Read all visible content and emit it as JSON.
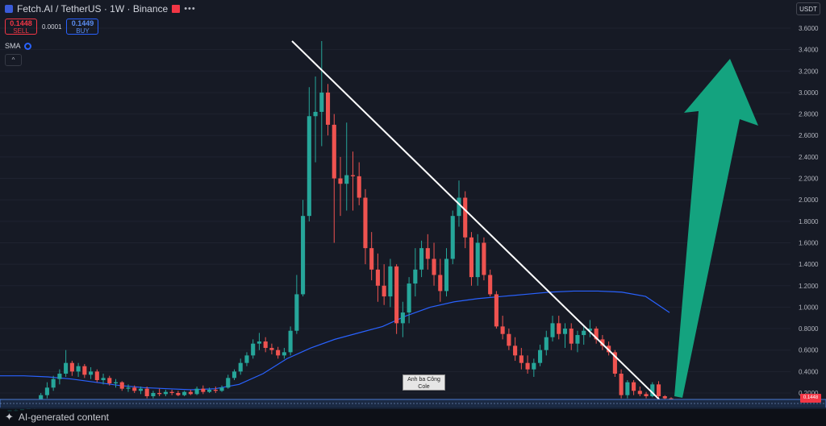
{
  "header": {
    "symbol": "Fetch.AI / TetherUS · 1W · Binance"
  },
  "trade": {
    "sell_price": "0.1448",
    "sell_label": "SELL",
    "spread": "0.0001",
    "buy_price": "0.1449",
    "buy_label": "BUY"
  },
  "indicator": {
    "label": "SMA"
  },
  "collapse_label": "^",
  "currency": "USDT",
  "last_price_tag": "0.1448",
  "annotation": {
    "line1": "Anh ba Công",
    "line2": "Cole"
  },
  "footer": {
    "label": "AI-generated content"
  },
  "colors": {
    "up": "#26a69a",
    "down": "#ef5350",
    "sma": "#2962ff",
    "trendline": "#ffffff",
    "arrow": "#14a37f"
  },
  "chart_data": {
    "type": "candlestick",
    "y_ticks": [
      "3.6000",
      "3.4000",
      "3.2000",
      "3.0000",
      "2.8000",
      "2.6000",
      "2.4000",
      "2.2000",
      "2.0000",
      "1.8000",
      "1.6000",
      "1.4000",
      "1.2000",
      "1.0000",
      "0.8000",
      "0.6000",
      "0.4000",
      "0.2000"
    ],
    "ylim": [
      0,
      3.7
    ],
    "candles": [
      [
        0.03,
        0.04,
        0.03,
        0.04
      ],
      [
        0.04,
        0.05,
        0.03,
        0.04
      ],
      [
        0.04,
        0.05,
        0.04,
        0.05
      ],
      [
        0.05,
        0.07,
        0.05,
        0.06
      ],
      [
        0.06,
        0.08,
        0.05,
        0.07
      ],
      [
        0.07,
        0.2,
        0.07,
        0.18
      ],
      [
        0.18,
        0.3,
        0.15,
        0.25
      ],
      [
        0.25,
        0.36,
        0.22,
        0.33
      ],
      [
        0.33,
        0.42,
        0.28,
        0.38
      ],
      [
        0.38,
        0.6,
        0.35,
        0.48
      ],
      [
        0.48,
        0.5,
        0.36,
        0.4
      ],
      [
        0.4,
        0.48,
        0.35,
        0.45
      ],
      [
        0.45,
        0.47,
        0.34,
        0.37
      ],
      [
        0.37,
        0.44,
        0.33,
        0.4
      ],
      [
        0.4,
        0.42,
        0.3,
        0.32
      ],
      [
        0.32,
        0.38,
        0.28,
        0.34
      ],
      [
        0.34,
        0.36,
        0.27,
        0.29
      ],
      [
        0.29,
        0.33,
        0.25,
        0.3
      ],
      [
        0.3,
        0.31,
        0.22,
        0.24
      ],
      [
        0.24,
        0.28,
        0.21,
        0.25
      ],
      [
        0.25,
        0.27,
        0.2,
        0.22
      ],
      [
        0.22,
        0.26,
        0.19,
        0.24
      ],
      [
        0.24,
        0.26,
        0.15,
        0.17
      ],
      [
        0.17,
        0.22,
        0.15,
        0.2
      ],
      [
        0.2,
        0.24,
        0.17,
        0.19
      ],
      [
        0.19,
        0.23,
        0.17,
        0.21
      ],
      [
        0.21,
        0.23,
        0.18,
        0.2
      ],
      [
        0.2,
        0.22,
        0.17,
        0.18
      ],
      [
        0.18,
        0.22,
        0.17,
        0.21
      ],
      [
        0.21,
        0.23,
        0.18,
        0.19
      ],
      [
        0.19,
        0.26,
        0.18,
        0.24
      ],
      [
        0.24,
        0.27,
        0.19,
        0.21
      ],
      [
        0.21,
        0.25,
        0.2,
        0.23
      ],
      [
        0.23,
        0.26,
        0.2,
        0.22
      ],
      [
        0.22,
        0.27,
        0.21,
        0.25
      ],
      [
        0.25,
        0.37,
        0.24,
        0.34
      ],
      [
        0.34,
        0.42,
        0.32,
        0.4
      ],
      [
        0.4,
        0.52,
        0.37,
        0.48
      ],
      [
        0.48,
        0.58,
        0.45,
        0.55
      ],
      [
        0.55,
        0.7,
        0.52,
        0.66
      ],
      [
        0.66,
        0.76,
        0.6,
        0.68
      ],
      [
        0.68,
        0.72,
        0.58,
        0.62
      ],
      [
        0.62,
        0.66,
        0.56,
        0.6
      ],
      [
        0.6,
        0.63,
        0.52,
        0.55
      ],
      [
        0.55,
        0.62,
        0.52,
        0.58
      ],
      [
        0.58,
        0.82,
        0.55,
        0.78
      ],
      [
        0.78,
        1.3,
        0.75,
        1.12
      ],
      [
        1.12,
        2.0,
        1.1,
        1.85
      ],
      [
        1.85,
        3.05,
        1.8,
        2.78
      ],
      [
        2.78,
        3.15,
        2.35,
        2.82
      ],
      [
        2.82,
        3.48,
        2.5,
        3.0
      ],
      [
        3.0,
        3.08,
        2.6,
        2.7
      ],
      [
        2.7,
        2.8,
        1.6,
        2.2
      ],
      [
        2.2,
        2.4,
        1.85,
        2.15
      ],
      [
        2.15,
        2.72,
        1.9,
        2.23
      ],
      [
        2.23,
        2.45,
        1.9,
        2.22
      ],
      [
        2.22,
        2.35,
        1.95,
        2.02
      ],
      [
        2.02,
        2.1,
        1.4,
        1.55
      ],
      [
        1.55,
        1.7,
        1.25,
        1.35
      ],
      [
        1.35,
        1.5,
        1.05,
        1.2
      ],
      [
        1.2,
        1.4,
        1.02,
        1.1
      ],
      [
        1.1,
        1.45,
        1.0,
        1.38
      ],
      [
        1.38,
        1.4,
        0.75,
        0.85
      ],
      [
        0.85,
        1.05,
        0.72,
        0.95
      ],
      [
        0.95,
        1.28,
        0.85,
        1.22
      ],
      [
        1.22,
        1.55,
        1.1,
        1.35
      ],
      [
        1.35,
        1.62,
        1.28,
        1.55
      ],
      [
        1.55,
        1.68,
        1.35,
        1.45
      ],
      [
        1.45,
        1.6,
        1.2,
        1.3
      ],
      [
        1.3,
        1.45,
        1.05,
        1.15
      ],
      [
        1.15,
        1.55,
        1.1,
        1.45
      ],
      [
        1.45,
        1.9,
        1.4,
        1.85
      ],
      [
        1.85,
        2.18,
        1.75,
        2.02
      ],
      [
        2.02,
        2.08,
        1.55,
        1.65
      ],
      [
        1.65,
        1.7,
        1.2,
        1.28
      ],
      [
        1.28,
        1.68,
        1.2,
        1.6
      ],
      [
        1.6,
        1.65,
        1.25,
        1.3
      ],
      [
        1.3,
        1.35,
        1.1,
        1.12
      ],
      [
        1.12,
        1.15,
        0.8,
        0.82
      ],
      [
        0.82,
        0.92,
        0.7,
        0.75
      ],
      [
        0.75,
        0.8,
        0.6,
        0.64
      ],
      [
        0.64,
        0.72,
        0.5,
        0.55
      ],
      [
        0.55,
        0.62,
        0.42,
        0.48
      ],
      [
        0.48,
        0.55,
        0.38,
        0.42
      ],
      [
        0.42,
        0.52,
        0.35,
        0.48
      ],
      [
        0.48,
        0.65,
        0.45,
        0.6
      ],
      [
        0.6,
        0.78,
        0.55,
        0.72
      ],
      [
        0.72,
        0.92,
        0.68,
        0.85
      ],
      [
        0.85,
        0.92,
        0.7,
        0.75
      ],
      [
        0.75,
        0.85,
        0.62,
        0.8
      ],
      [
        0.8,
        0.85,
        0.6,
        0.66
      ],
      [
        0.66,
        0.78,
        0.58,
        0.74
      ],
      [
        0.74,
        0.82,
        0.65,
        0.78
      ],
      [
        0.78,
        0.88,
        0.72,
        0.8
      ],
      [
        0.8,
        0.82,
        0.66,
        0.7
      ],
      [
        0.7,
        0.74,
        0.6,
        0.64
      ],
      [
        0.64,
        0.68,
        0.55,
        0.58
      ],
      [
        0.58,
        0.6,
        0.35,
        0.38
      ],
      [
        0.38,
        0.42,
        0.15,
        0.18
      ],
      [
        0.18,
        0.32,
        0.15,
        0.3
      ],
      [
        0.3,
        0.32,
        0.18,
        0.22
      ],
      [
        0.22,
        0.26,
        0.17,
        0.19
      ],
      [
        0.19,
        0.21,
        0.15,
        0.17
      ],
      [
        0.17,
        0.3,
        0.16,
        0.28
      ],
      [
        0.28,
        0.31,
        0.15,
        0.17
      ],
      [
        0.17,
        0.18,
        0.14,
        0.15
      ],
      [
        0.15,
        0.16,
        0.14,
        0.145
      ]
    ],
    "sma": [
      0.36,
      0.36,
      0.35,
      0.33,
      0.3,
      0.27,
      0.25,
      0.24,
      0.23,
      0.24,
      0.28,
      0.38,
      0.52,
      0.62,
      0.7,
      0.76,
      0.82,
      0.92,
      1.0,
      1.05,
      1.08,
      1.1,
      1.12,
      1.14,
      1.15,
      1.15,
      1.14,
      1.1,
      0.95
    ],
    "trendline": [
      [
        3.48
      ],
      [
        0.12
      ]
    ],
    "annotation_text": "Anh ba Công Cole"
  }
}
